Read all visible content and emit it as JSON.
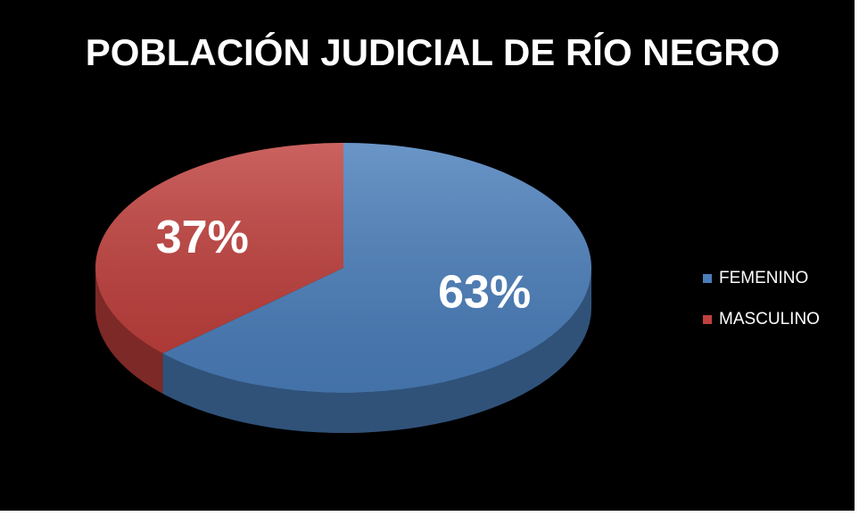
{
  "chart_data": {
    "type": "pie",
    "title": "POBLACIÓN JUDICIAL DE RÍO NEGRO",
    "categories": [
      "FEMENINO",
      "MASCULINO"
    ],
    "values": [
      63,
      37
    ],
    "value_labels": [
      "63%",
      "37%"
    ],
    "colors": [
      "#4a7ebb",
      "#c0403d"
    ],
    "legend": "right"
  }
}
